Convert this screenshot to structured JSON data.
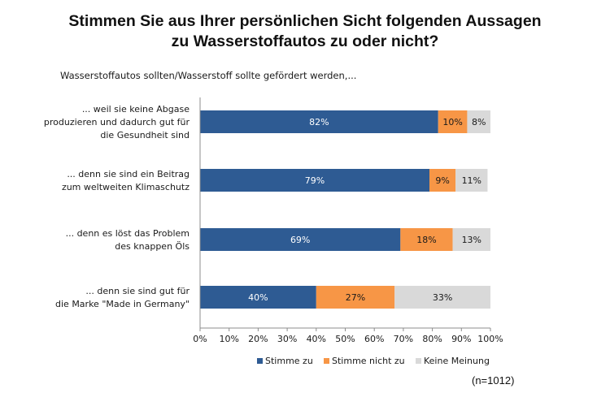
{
  "chart_data": {
    "type": "bar",
    "orientation": "horizontal",
    "stacked": true,
    "title_lines": [
      "Stimmen Sie aus Ihrer persönlichen Sicht folgenden Aussagen",
      "zu Wasserstoffautos zu oder nicht?"
    ],
    "subtitle": "Wasserstoffautos sollten/Wasserstoff sollte gefördert werden,...",
    "categories": [
      [
        "... weil sie keine Abgase",
        "produzieren und dadurch gut für",
        "die Gesundheit sind"
      ],
      [
        "... denn sie sind ein Beitrag",
        "zum weltweiten Klimaschutz"
      ],
      [
        "... denn es löst das Problem",
        "des knappen Öls"
      ],
      [
        "... denn sie sind gut für",
        "die Marke \"Made in Germany\""
      ]
    ],
    "series": [
      {
        "name": "Stimme zu",
        "color": "#2e5b93",
        "label_color": "#ffffff",
        "values": [
          82,
          79,
          69,
          40
        ]
      },
      {
        "name": "Stimme nicht zu",
        "color": "#f79646",
        "label_color": "#1a1a1a",
        "values": [
          10,
          9,
          18,
          27
        ]
      },
      {
        "name": "Keine Meinung",
        "color": "#d9d9d9",
        "label_color": "#1a1a1a",
        "values": [
          8,
          11,
          13,
          33
        ]
      }
    ],
    "xlim": [
      0,
      100
    ],
    "xticks": [
      "0%",
      "10%",
      "20%",
      "30%",
      "40%",
      "50%",
      "60%",
      "70%",
      "80%",
      "90%",
      "100%"
    ],
    "legend_position": "bottom",
    "grid": false
  },
  "footnote": "(n=1012)"
}
